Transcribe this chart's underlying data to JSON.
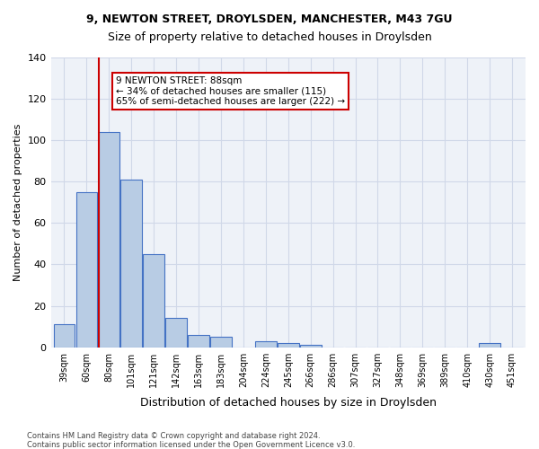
{
  "title1": "9, NEWTON STREET, DROYLSDEN, MANCHESTER, M43 7GU",
  "title2": "Size of property relative to detached houses in Droylsden",
  "xlabel": "Distribution of detached houses by size in Droylsden",
  "ylabel": "Number of detached properties",
  "footer1": "Contains HM Land Registry data © Crown copyright and database right 2024.",
  "footer2": "Contains public sector information licensed under the Open Government Licence v3.0.",
  "categories": [
    "39sqm",
    "60sqm",
    "80sqm",
    "101sqm",
    "121sqm",
    "142sqm",
    "163sqm",
    "183sqm",
    "204sqm",
    "224sqm",
    "245sqm",
    "266sqm",
    "286sqm",
    "307sqm",
    "327sqm",
    "348sqm",
    "369sqm",
    "389sqm",
    "410sqm",
    "430sqm",
    "451sqm"
  ],
  "values": [
    11,
    75,
    104,
    81,
    45,
    14,
    6,
    5,
    0,
    3,
    2,
    1,
    0,
    0,
    0,
    0,
    0,
    0,
    0,
    2,
    0
  ],
  "bar_color": "#b8cce4",
  "bar_edge_color": "#4472c4",
  "grid_color": "#d0d8e8",
  "bg_color": "#eef2f8",
  "annotation_text": "9 NEWTON STREET: 88sqm\n← 34% of detached houses are smaller (115)\n65% of semi-detached houses are larger (222) →",
  "annotation_box_color": "#ffffff",
  "annotation_box_edge_color": "#cc0000",
  "red_line_x": 2,
  "red_line_color": "#cc0000",
  "ylim": [
    0,
    140
  ],
  "yticks": [
    0,
    20,
    40,
    60,
    80,
    100,
    120,
    140
  ]
}
